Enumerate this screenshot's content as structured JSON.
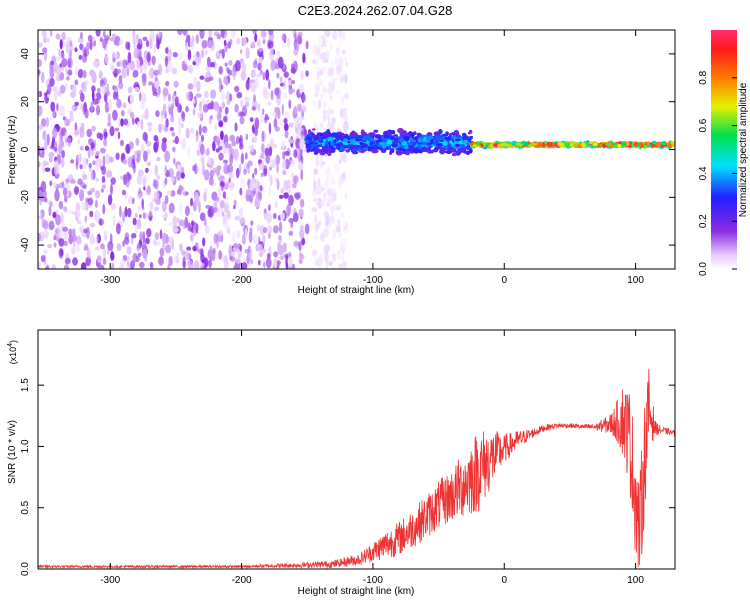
{
  "figure": {
    "title": "C2E3.2024.262.07.04.G28"
  },
  "chart_data": [
    {
      "type": "heatmap",
      "title": "C2E3.2024.262.07.04.G28",
      "xlabel": "Height of straight line (km)",
      "ylabel": "Frequency (Hz)",
      "xlim": [
        -355,
        130
      ],
      "ylim": [
        -50,
        50
      ],
      "x_ticks": [
        -300,
        -200,
        -100,
        0,
        100
      ],
      "x_tick_labels": [
        "-300",
        "-200",
        "-100",
        "0",
        "100"
      ],
      "y_ticks": [
        -40,
        -20,
        0,
        20,
        40
      ],
      "y_tick_labels": [
        "-40",
        "-20",
        "0",
        "20",
        "40"
      ],
      "colorbar": {
        "label": "Normalized spectral amplitude",
        "range": [
          0,
          1
        ],
        "ticks": [
          0.0,
          0.2,
          0.4,
          0.6,
          0.8
        ],
        "tick_labels": [
          "0.0",
          "0.2",
          "0.4",
          "0.6",
          "0.8"
        ],
        "colormap": "rainbow (white-violet-blue-cyan-green-yellow-red)"
      },
      "regions": [
        {
          "x_range": [
            -355,
            -150
          ],
          "freq_range": [
            -50,
            50
          ],
          "amplitude": 0.1,
          "description": "broadband noise"
        },
        {
          "x_range": [
            -145,
            -120
          ],
          "freq_range": [
            -50,
            50
          ],
          "amplitude": 0.03,
          "description": "faint broadband noise"
        },
        {
          "x_range": [
            -150,
            -25
          ],
          "freq_center": 3,
          "freq_halfwidth": 6,
          "amplitude": 0.4
        },
        {
          "x_range": [
            -25,
            130
          ],
          "freq_center": 2,
          "freq_halfwidth": 1,
          "amplitude": 0.9
        }
      ]
    },
    {
      "type": "line",
      "xlabel": "Height of straight line (km)",
      "ylabel": "SNR (10 * v/v)",
      "y_scale_label": "(x10",
      "y_scale_exponent": "4",
      "xlim": [
        -355,
        130
      ],
      "ylim": [
        0,
        1.95
      ],
      "x_ticks": [
        -300,
        -200,
        -100,
        0,
        100
      ],
      "x_tick_labels": [
        "-300",
        "-200",
        "-100",
        "0",
        "100"
      ],
      "y_ticks": [
        0.0,
        0.5,
        1.0,
        1.5
      ],
      "y_tick_labels": [
        "0.0",
        "0.5",
        "1.0",
        "1.5"
      ],
      "series": [
        {
          "color": "#ee3333",
          "x": [
            -355,
            -300,
            -250,
            -200,
            -160,
            -130,
            -110,
            -100,
            -90,
            -80,
            -70,
            -60,
            -50,
            -40,
            -30,
            -20,
            -10,
            0,
            10,
            20,
            30,
            40,
            50,
            60,
            70,
            80,
            85,
            90,
            95,
            100,
            103,
            106,
            110,
            115,
            120,
            130
          ],
          "y": [
            0.02,
            0.02,
            0.02,
            0.02,
            0.03,
            0.04,
            0.08,
            0.14,
            0.2,
            0.25,
            0.33,
            0.42,
            0.52,
            0.6,
            0.7,
            0.8,
            0.9,
            0.98,
            1.05,
            1.1,
            1.15,
            1.17,
            1.17,
            1.16,
            1.16,
            1.18,
            1.2,
            1.22,
            1.1,
            0.6,
            0.25,
            0.8,
            1.3,
            1.15,
            1.13,
            1.11
          ],
          "noise_amplitude": [
            0.01,
            0.01,
            0.01,
            0.01,
            0.02,
            0.03,
            0.05,
            0.08,
            0.12,
            0.14,
            0.16,
            0.18,
            0.2,
            0.22,
            0.28,
            0.35,
            0.25,
            0.12,
            0.08,
            0.04,
            0.03,
            0.02,
            0.02,
            0.02,
            0.03,
            0.08,
            0.15,
            0.3,
            0.4,
            0.5,
            0.45,
            0.5,
            0.35,
            0.06,
            0.03,
            0.02
          ]
        }
      ]
    }
  ]
}
